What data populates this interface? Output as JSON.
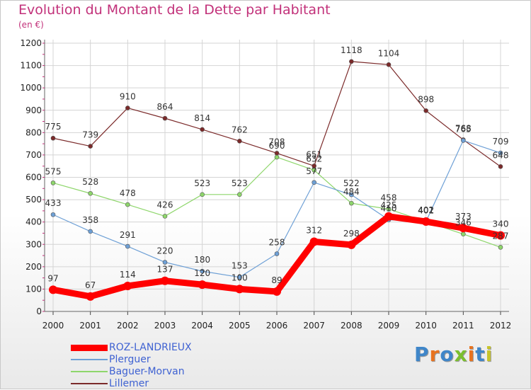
{
  "chart_data": {
    "type": "line",
    "title": "Evolution du Montant de la Dette par Habitant",
    "subtitle": "(en €)",
    "x": [
      "2000",
      "2001",
      "2002",
      "2003",
      "2004",
      "2005",
      "2006",
      "2007",
      "2008",
      "2009",
      "2010",
      "2011",
      "2012"
    ],
    "ylim": [
      0,
      1200
    ],
    "yticks": [
      "0",
      "100",
      "200",
      "300",
      "400",
      "500",
      "600",
      "700",
      "800",
      "900",
      "1000",
      "1100",
      "1200"
    ],
    "grid": true,
    "legend_position": "bottom-left",
    "series": [
      {
        "name": "ROZ-LANDRIEUX",
        "color": "#ff0000",
        "values": [
          97,
          67,
          114,
          137,
          120,
          100,
          89,
          312,
          298,
          425,
          402,
          373,
          340
        ],
        "labels": [
          "97",
          "67",
          "114",
          "137",
          "120",
          "100",
          "89",
          "312",
          "298",
          "425",
          "402",
          "373",
          "340"
        ]
      },
      {
        "name": "Plerguer",
        "color": "#6ea0d6",
        "values": [
          433,
          358,
          291,
          220,
          180,
          153,
          258,
          577,
          522,
          410,
          402,
          765,
          709
        ],
        "labels": [
          "433",
          "358",
          "291",
          "220",
          "180",
          "153",
          "258",
          "577",
          "522",
          "410",
          "402",
          "765",
          "709"
        ]
      },
      {
        "name": "Baguer-Morvan",
        "color": "#8ed66b",
        "values": [
          575,
          528,
          478,
          426,
          523,
          523,
          690,
          632,
          484,
          458,
          401,
          346,
          287
        ],
        "labels": [
          "575",
          "528",
          "478",
          "426",
          "523",
          "523",
          "690",
          "632",
          "484",
          "458",
          "401",
          "346",
          "287"
        ]
      },
      {
        "name": "Lillemer",
        "color": "#7b2a2a",
        "values": [
          775,
          739,
          910,
          864,
          814,
          762,
          708,
          651,
          1118,
          1104,
          898,
          768,
          648
        ],
        "labels": [
          "775",
          "739",
          "910",
          "864",
          "814",
          "762",
          "708",
          "651",
          "1118",
          "1104",
          "898",
          "768",
          "648"
        ]
      }
    ]
  },
  "brand": {
    "text": "Proxiti",
    "colors": [
      "#3f86c9",
      "#e8731f",
      "#3f86c9",
      "#7bbf2e",
      "#e8731f",
      "#3f86c9",
      "#c7c42a"
    ]
  }
}
